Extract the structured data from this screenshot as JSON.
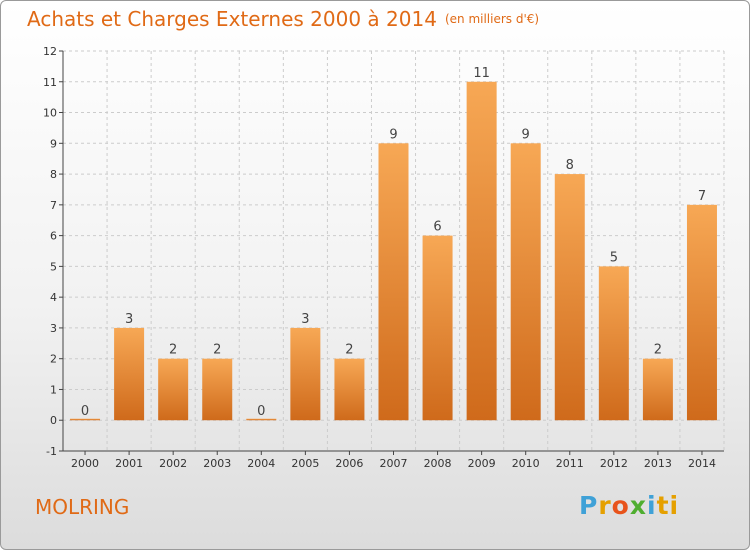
{
  "header": {
    "title": "Achats et Charges Externes 2000 à 2014",
    "subtitle": "(en milliers d'€)"
  },
  "footer": {
    "commune": "MOLRING",
    "logo_letters": [
      "P",
      "r",
      "o",
      "x",
      "i",
      "ti"
    ]
  },
  "colors": {
    "title": "#e06a16",
    "bar_light": "#f7a855",
    "bar_dark": "#cf6a1b",
    "grid": "#cccccc",
    "axis": "#444444"
  },
  "chart_data": {
    "type": "bar",
    "title": "Achats et Charges Externes 2000 à 2014",
    "xlabel": "",
    "ylabel": "",
    "categories": [
      "2000",
      "2001",
      "2002",
      "2003",
      "2004",
      "2005",
      "2006",
      "2007",
      "2008",
      "2009",
      "2010",
      "2011",
      "2012",
      "2013",
      "2014"
    ],
    "values": [
      0,
      3,
      2,
      2,
      0,
      3,
      2,
      9,
      6,
      11,
      9,
      8,
      5,
      2,
      7
    ],
    "ylim": [
      -1,
      12
    ],
    "yticks": [
      -1,
      0,
      1,
      2,
      3,
      4,
      5,
      6,
      7,
      8,
      9,
      10,
      11,
      12
    ],
    "ytick_labels": [
      "-1",
      "0",
      "1",
      "2",
      "3",
      "4",
      "5",
      "6",
      "7",
      "8",
      "9",
      "10",
      "11",
      "12"
    ],
    "grid": true,
    "data_labels": true
  }
}
